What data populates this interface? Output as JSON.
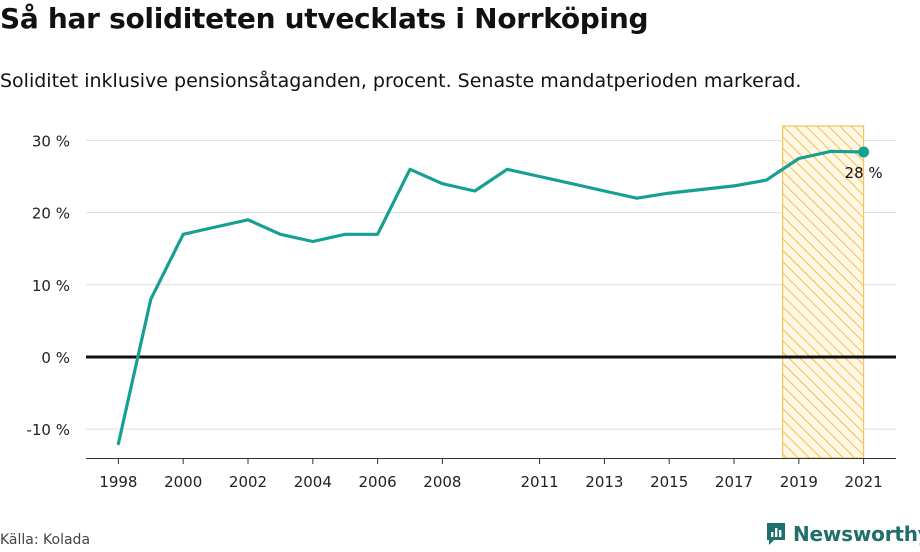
{
  "header": {
    "title": "Så har soliditeten utvecklats i Norrköping",
    "subtitle": "Soliditet inklusive pensionsåtaganden, procent. Senaste mandatperioden markerad."
  },
  "footer": {
    "source": "Källa: Kolada",
    "brand": "Newsworthy"
  },
  "chart_data": {
    "type": "line",
    "title": "Så har soliditeten utvecklats i Norrköping",
    "subtitle": "Soliditet inklusive pensionsåtaganden, procent. Senaste mandatperioden markerad.",
    "xlabel": "",
    "ylabel": "",
    "xlim": [
      1997,
      2022
    ],
    "ylim": [
      -14,
      32
    ],
    "yticks": [
      -10,
      0,
      10,
      20,
      30
    ],
    "ytick_labels": [
      "-10 %",
      "0 %",
      "10 %",
      "20 %",
      "30 %"
    ],
    "xticks": [
      1998,
      2000,
      2002,
      2004,
      2006,
      2008,
      2011,
      2013,
      2015,
      2017,
      2019,
      2021
    ],
    "xtick_labels": [
      "1998",
      "2000",
      "2002",
      "2004",
      "2006",
      "2008",
      "2011",
      "2013",
      "2015",
      "2017",
      "2019",
      "2021"
    ],
    "grid": true,
    "highlight_period": [
      2018.5,
      2021
    ],
    "series": [
      {
        "color": "#16a092",
        "x": [
          1998,
          1999,
          2000,
          2001,
          2002,
          2003,
          2004,
          2005,
          2006,
          2007,
          2008,
          2009,
          2010,
          2011,
          2012,
          2013,
          2014,
          2015,
          2016,
          2017,
          2018,
          2019,
          2020,
          2021
        ],
        "y": [
          -12,
          8,
          17,
          18,
          19,
          17,
          16,
          17,
          17,
          26,
          24,
          23,
          26,
          25,
          24,
          23,
          22,
          22.7,
          23.2,
          23.7,
          24.5,
          27.5,
          28.5,
          28.4
        ]
      }
    ],
    "annotations": [
      {
        "x": 2021,
        "y": 28.4,
        "text": "28 %"
      }
    ],
    "colors": {
      "line": "#16a092",
      "zero_line": "#111111",
      "grid": "#dddddd",
      "highlight": "#f6c35a"
    }
  }
}
